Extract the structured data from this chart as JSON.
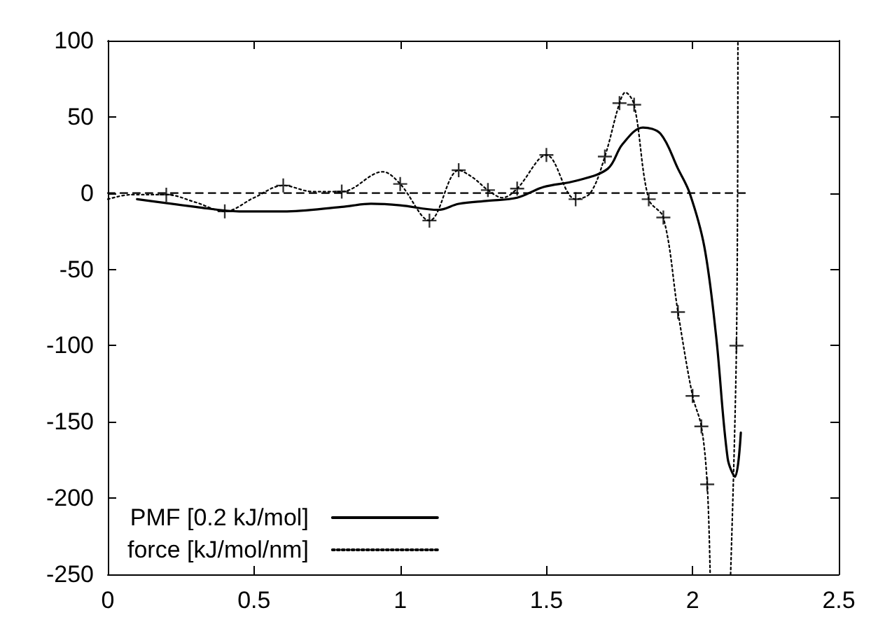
{
  "chart_data": {
    "type": "line",
    "xlim": [
      0,
      2.5
    ],
    "ylim": [
      -250,
      100
    ],
    "xticks": [
      0,
      0.5,
      1,
      1.5,
      2,
      2.5
    ],
    "yticks": [
      -250,
      -200,
      -150,
      -100,
      -50,
      0,
      50,
      100
    ],
    "grid": false,
    "legend": "bottom left",
    "series": [
      {
        "name": "PMF [0.2 kJ/mol]",
        "color": "#000000",
        "line_style": "solid",
        "marker": "none",
        "x": [
          0.1,
          0.3,
          0.45,
          0.6,
          0.8,
          0.9,
          1.0,
          1.13,
          1.2,
          1.3,
          1.4,
          1.49,
          1.6,
          1.71,
          1.76,
          1.83,
          1.89,
          1.95,
          1.99,
          2.04,
          2.08,
          2.12,
          2.145,
          2.165
        ],
        "values": [
          -4,
          -9,
          -12,
          -12,
          -9,
          -7,
          -8,
          -11,
          -7,
          -5,
          -3,
          4,
          8,
          16,
          32,
          43,
          39,
          16,
          0,
          -35,
          -93,
          -174,
          -186,
          -157
        ]
      },
      {
        "name": "force [kJ/mol/nm]",
        "color": "#000000",
        "line_style": "dotted",
        "marker": "none",
        "x": [
          0,
          0.08,
          0.2,
          0.3,
          0.4,
          0.5,
          0.6,
          0.7,
          0.8,
          0.94,
          1.0,
          1.1,
          1.2,
          1.25,
          1.3,
          1.35,
          1.4,
          1.5,
          1.6,
          1.65,
          1.7,
          1.75,
          1.77,
          1.8,
          1.85,
          1.9,
          1.95,
          2.0,
          2.03,
          2.05,
          2.06,
          2.1,
          2.13,
          2.15,
          2.155
        ],
        "values": [
          -4,
          -1,
          -1,
          -6,
          -12,
          -3,
          5,
          1,
          1,
          14,
          6,
          -18,
          15,
          10,
          2,
          -3,
          3,
          25,
          -4,
          0,
          24,
          59,
          66,
          58,
          -4,
          -16,
          -78,
          -133,
          -153,
          -191,
          -250,
          null,
          -250,
          -100,
          100
        ]
      },
      {
        "type": "scatter",
        "color": "#000000",
        "marker": "cross",
        "x": [
          0.2,
          0.4,
          0.6,
          0.8,
          1.0,
          1.1,
          1.2,
          1.3,
          1.4,
          1.5,
          1.6,
          1.7,
          1.75,
          1.8,
          1.85,
          1.9,
          1.95,
          2.0,
          2.03,
          2.05,
          2.15
        ],
        "values": [
          -1,
          -12,
          5,
          1,
          6,
          -18,
          15,
          2,
          3,
          25,
          -4,
          24,
          59,
          58,
          -4,
          -16,
          -78,
          -133,
          -153,
          -191,
          -100
        ]
      },
      {
        "color": "#000000",
        "line_style": "dashed",
        "marker": "none",
        "x": [
          0,
          2.18
        ],
        "values": [
          0,
          0
        ]
      }
    ]
  }
}
